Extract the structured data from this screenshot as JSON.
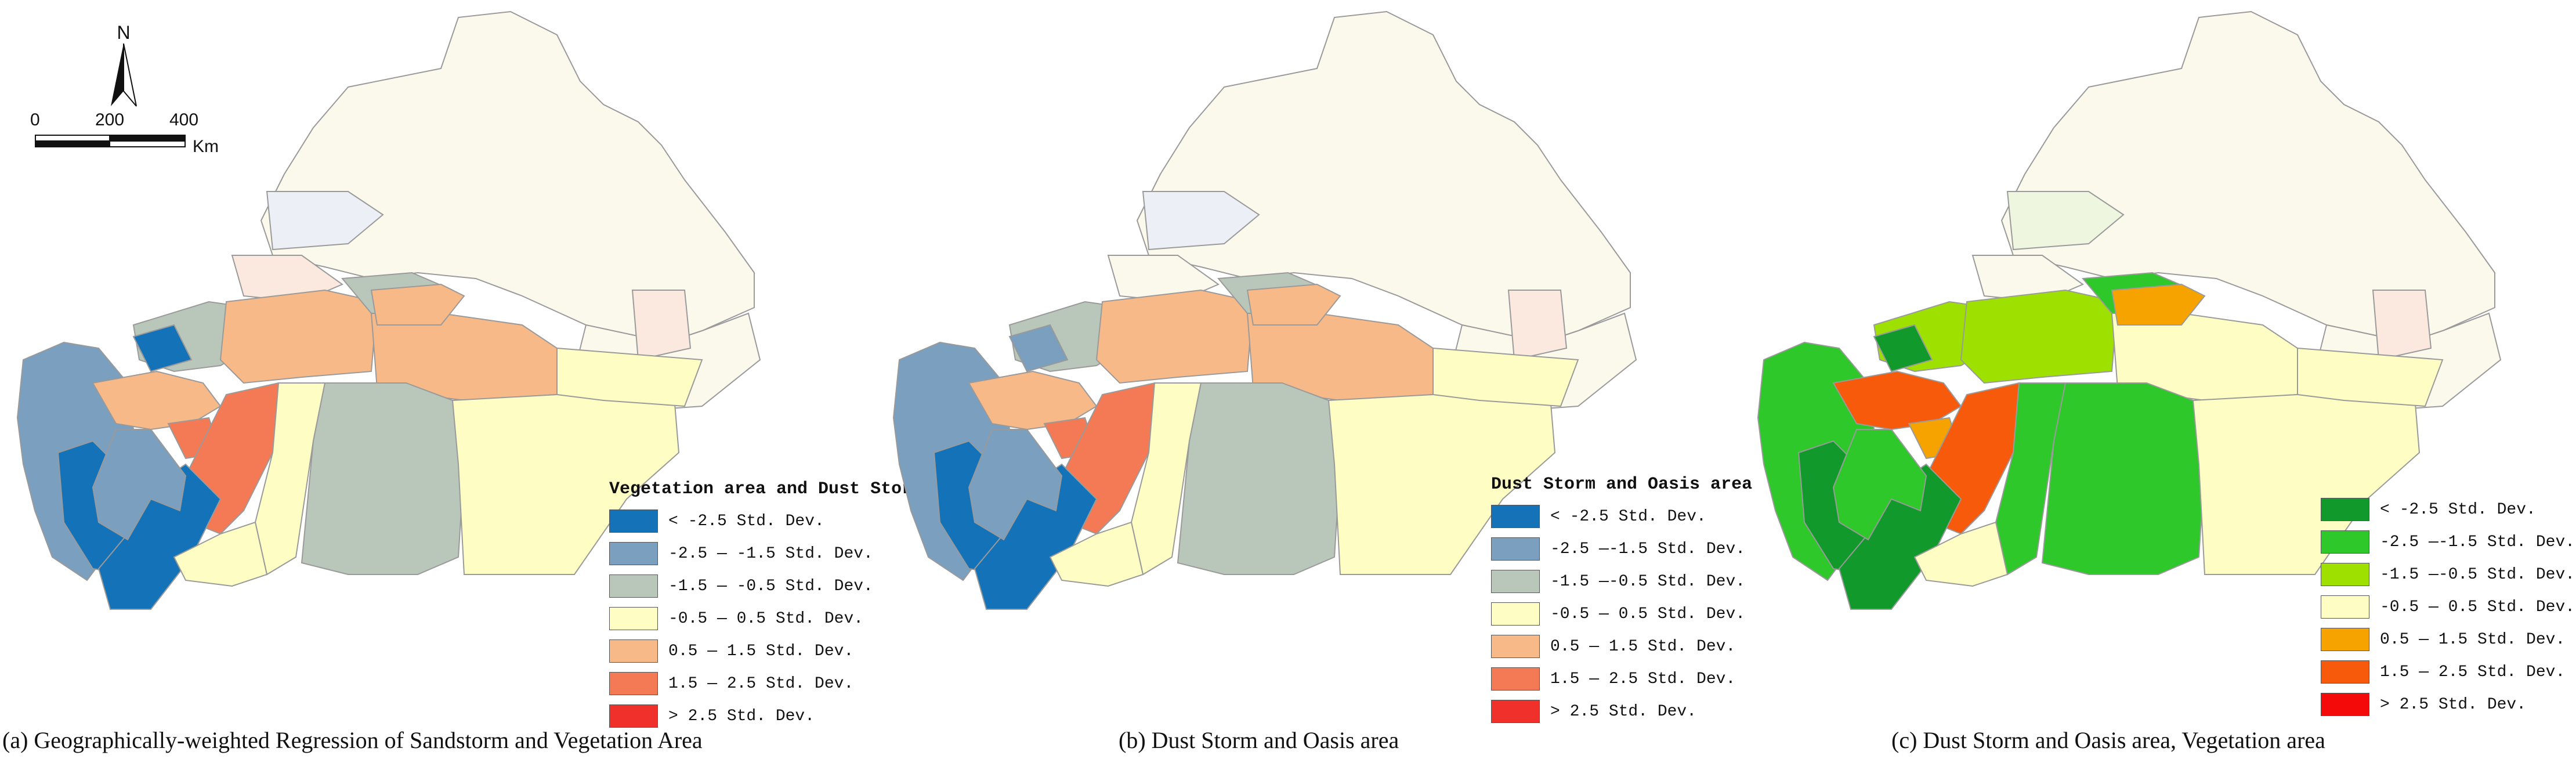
{
  "north_arrow": {
    "label": "N"
  },
  "scale_bar": {
    "ticks": [
      "0",
      "200",
      "400"
    ],
    "unit": "Km"
  },
  "colors": {
    "boundary": "#9a9a9a",
    "faded_base": "#fbf8ec",
    "faded_blue": "#eceff6",
    "faded_pink": "#fbe8de",
    "faded_green": "#eef6df"
  },
  "panels": [
    {
      "id": "a",
      "legend_title": "Vegetation area and Dust Storm",
      "caption": "(a) Geographically-weighted Regression of Sandstorm and Vegetation Area",
      "classes": [
        {
          "label": "< -2.5 Std. Dev.",
          "color": "#1473b8"
        },
        {
          "label": "-2.5 — -1.5 Std. Dev.",
          "color": "#7a9fbf"
        },
        {
          "label": "-1.5 — -0.5 Std. Dev.",
          "color": "#b8c7ba"
        },
        {
          "label": "-0.5 — 0.5 Std. Dev.",
          "color": "#fdfdc4"
        },
        {
          "label": "0.5 — 1.5 Std. Dev.",
          "color": "#f8b989"
        },
        {
          "label": "1.5 — 2.5 Std. Dev.",
          "color": "#f47a56"
        },
        {
          "label": "> 2.5 Std. Dev.",
          "color": "#f0302a"
        }
      ]
    },
    {
      "id": "b",
      "legend_title": "Dust Storm and Oasis area",
      "caption": "(b) Dust Storm and Oasis area",
      "classes": [
        {
          "label": "< -2.5 Std. Dev.",
          "color": "#1473b8"
        },
        {
          "label": "-2.5 —-1.5 Std. Dev.",
          "color": "#7a9fbf"
        },
        {
          "label": "-1.5 —-0.5 Std. Dev.",
          "color": "#b8c7ba"
        },
        {
          "label": "-0.5 — 0.5 Std. Dev.",
          "color": "#fdfdc4"
        },
        {
          "label": "0.5 — 1.5 Std. Dev.",
          "color": "#f8b989"
        },
        {
          "label": "1.5 — 2.5 Std. Dev.",
          "color": "#f47a56"
        },
        {
          "label": "> 2.5 Std. Dev.",
          "color": "#f0302a"
        }
      ]
    },
    {
      "id": "c",
      "legend_title": "",
      "caption": "(c)  Dust Storm and Oasis area, Vegetation area",
      "classes": [
        {
          "label": "< -2.5 Std. Dev.",
          "color": "#119a2b"
        },
        {
          "label": "-2.5 —-1.5 Std. Dev.",
          "color": "#2ec82a"
        },
        {
          "label": "-1.5 —-0.5 Std. Dev.",
          "color": "#9ee000"
        },
        {
          "label": "-0.5 — 0.5 Std. Dev.",
          "color": "#fdfdc4"
        },
        {
          "label": "0.5 — 1.5 Std. Dev.",
          "color": "#f6a300"
        },
        {
          "label": "1.5 — 2.5 Std. Dev.",
          "color": "#f65a0a"
        },
        {
          "label": "> 2.5 Std. Dev.",
          "color": "#f50a0a"
        }
      ]
    }
  ]
}
